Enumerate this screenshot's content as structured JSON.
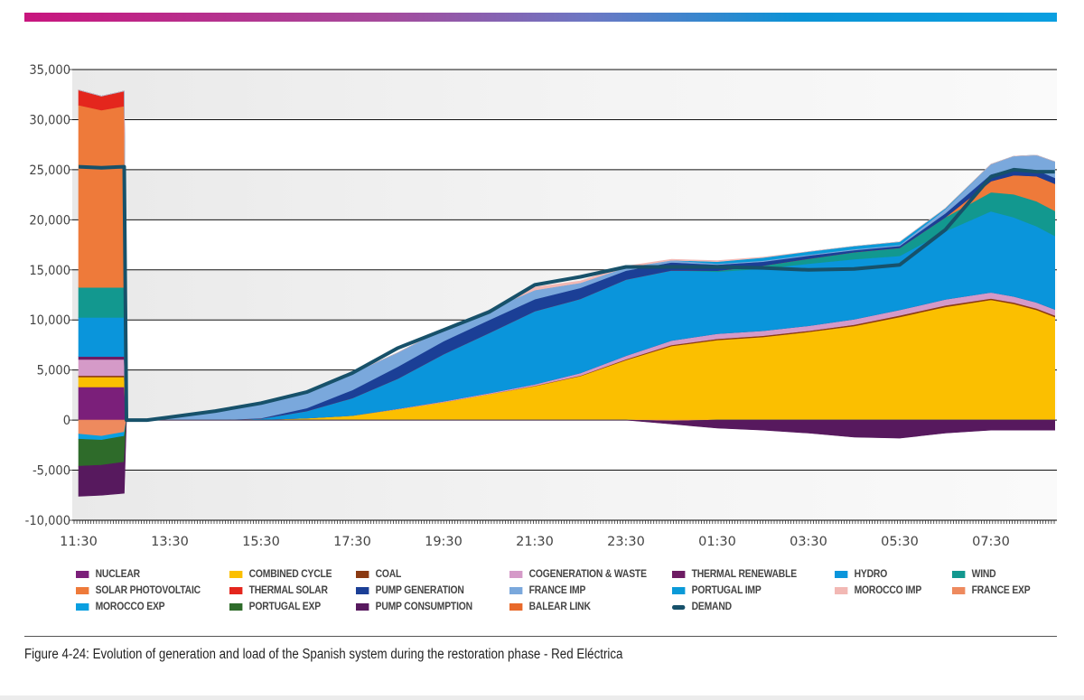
{
  "figure": {
    "caption": "Figure 4-24: Evolution of generation and load of the Spanish system during the restoration phase - Red Eléctrica"
  },
  "chart_data": {
    "type": "area",
    "stacked": true,
    "title": "",
    "xlabel": "",
    "ylabel": "",
    "ylim": [
      -10000,
      35000
    ],
    "yticks": [
      35000,
      30000,
      25000,
      20000,
      15000,
      10000,
      5000,
      0,
      -5000,
      -10000
    ],
    "ytick_labels": [
      "35,000",
      "30,000",
      "25,000",
      "20,000",
      "15,000",
      "10,000",
      "5,000",
      "0",
      "-5,000",
      "-10,000"
    ],
    "x_unit": "hours after 11:30",
    "xlim": [
      -0.15,
      21.42
    ],
    "xticks": [
      0,
      2,
      4,
      6,
      8,
      10,
      12,
      14,
      16,
      18,
      20
    ],
    "xtick_labels": [
      "11:30",
      "13:30",
      "15:30",
      "17:30",
      "19:30",
      "21:30",
      "23:30",
      "01:30",
      "03:30",
      "05:30",
      "07:30"
    ],
    "grid": "horizontal",
    "legend_position": "bottom",
    "x": [
      0,
      0.5,
      1.0,
      1.05,
      1.5,
      2,
      3,
      4,
      5,
      6,
      7,
      8,
      9,
      10,
      11,
      12,
      13,
      14,
      15,
      16,
      17,
      18,
      19,
      20,
      20.5,
      21,
      21.4
    ],
    "positive_series": [
      {
        "name": "NUCLEAR",
        "color": "#7b1f7a",
        "values": [
          3300,
          3300,
          3300,
          0,
          0,
          0,
          0,
          0,
          0,
          0,
          0,
          0,
          0,
          0,
          0,
          0,
          0,
          0,
          0,
          0,
          0,
          0,
          0,
          0,
          0,
          0,
          0
        ]
      },
      {
        "name": "COMBINED CYCLE",
        "color": "#fbbf00",
        "values": [
          1000,
          1000,
          1000,
          0,
          0,
          0,
          0,
          50,
          200,
          450,
          1100,
          1800,
          2600,
          3400,
          4400,
          6000,
          7400,
          8000,
          8300,
          8800,
          9400,
          10300,
          11300,
          12000,
          11600,
          11000,
          10300
        ]
      },
      {
        "name": "COAL",
        "color": "#8b3a12",
        "values": [
          150,
          150,
          150,
          0,
          0,
          0,
          0,
          0,
          0,
          0,
          0,
          0,
          0,
          30,
          50,
          80,
          100,
          120,
          120,
          120,
          120,
          150,
          150,
          150,
          150,
          150,
          150
        ]
      },
      {
        "name": "COGENERATION & WASTE",
        "color": "#d59ac8",
        "values": [
          1600,
          1600,
          1600,
          0,
          0,
          0,
          0,
          0,
          0,
          0,
          50,
          80,
          100,
          150,
          250,
          350,
          450,
          500,
          500,
          500,
          550,
          550,
          600,
          600,
          600,
          600,
          600
        ]
      },
      {
        "name": "THERMAL RENEWABLE",
        "color": "#6e1c63",
        "values": [
          300,
          300,
          300,
          0,
          0,
          0,
          0,
          0,
          0,
          0,
          0,
          0,
          0,
          0,
          0,
          0,
          0,
          0,
          0,
          0,
          0,
          0,
          0,
          0,
          0,
          0,
          0
        ]
      },
      {
        "name": "HYDRO",
        "color": "#0a95db",
        "values": [
          3900,
          3900,
          3900,
          0,
          0,
          0,
          0,
          100,
          700,
          1750,
          3000,
          4700,
          6000,
          7300,
          7400,
          7600,
          7000,
          6200,
          6200,
          6200,
          6000,
          5400,
          6800,
          8100,
          7900,
          7600,
          7350
        ]
      },
      {
        "name": "WIND",
        "color": "#12988f",
        "values": [
          3000,
          3000,
          3000,
          0,
          0,
          0,
          0,
          0,
          0,
          0,
          0,
          0,
          0,
          0,
          0,
          0,
          0,
          100,
          300,
          500,
          700,
          800,
          1400,
          1900,
          2300,
          2500,
          2500
        ]
      },
      {
        "name": "SOLAR PHOTOVOLTAIC",
        "color": "#ee7a3a",
        "values": [
          18200,
          17700,
          18100,
          0,
          0,
          0,
          0,
          0,
          0,
          0,
          0,
          0,
          0,
          0,
          0,
          0,
          0,
          0,
          0,
          0,
          0,
          0,
          0,
          1100,
          1900,
          2500,
          2700
        ]
      },
      {
        "name": "THERMAL SOLAR",
        "color": "#e4261d",
        "values": [
          1500,
          1400,
          1500,
          0,
          0,
          0,
          0,
          0,
          0,
          0,
          0,
          0,
          0,
          0,
          0,
          0,
          0,
          0,
          0,
          0,
          0,
          0,
          0,
          0,
          0,
          0,
          0
        ]
      },
      {
        "name": "PUMP GENERATION",
        "color": "#1b3f96",
        "values": [
          0,
          0,
          0,
          0,
          0,
          0,
          0,
          50,
          300,
          800,
          1200,
          1300,
          1300,
          1200,
          1100,
          900,
          800,
          600,
          400,
          300,
          200,
          200,
          400,
          700,
          700,
          600,
          600
        ]
      },
      {
        "name": "FRANCE IMP",
        "color": "#7aa8dc",
        "values": [
          0,
          0,
          0,
          0,
          0,
          300,
          900,
          1600,
          1600,
          1650,
          1400,
          1200,
          1000,
          900,
          500,
          300,
          200,
          100,
          100,
          100,
          100,
          100,
          400,
          1000,
          1200,
          1500,
          1600
        ]
      },
      {
        "name": "PORTUGAL IMP",
        "color": "#0a9ad8",
        "values": [
          0,
          0,
          0,
          0,
          0,
          0,
          0,
          0,
          0,
          0,
          0,
          0,
          0,
          0,
          0,
          0,
          0,
          200,
          300,
          300,
          300,
          300,
          100,
          0,
          0,
          0,
          0
        ]
      },
      {
        "name": "MOROCCO IMP",
        "color": "#f2b8b4",
        "values": [
          0,
          0,
          0,
          0,
          0,
          0,
          0,
          0,
          0,
          0,
          0,
          0,
          0,
          300,
          200,
          150,
          100,
          100,
          50,
          0,
          0,
          0,
          0,
          0,
          0,
          0,
          0
        ]
      },
      {
        "name": "BALEAR LINK",
        "color": "#e8692a",
        "values": [
          0,
          0,
          0,
          0,
          0,
          0,
          0,
          0,
          0,
          0,
          0,
          0,
          0,
          0,
          0,
          0,
          0,
          0,
          0,
          0,
          0,
          0,
          0,
          0,
          0,
          0,
          0
        ]
      }
    ],
    "negative_series": [
      {
        "name": "FRANCE EXP",
        "color": "#ee8a5e",
        "values": [
          -1400,
          -1600,
          -1200,
          0,
          0,
          0,
          0,
          0,
          0,
          0,
          0,
          0,
          0,
          0,
          0,
          0,
          -100,
          0,
          0,
          0,
          0,
          0,
          0,
          0,
          0,
          0,
          0
        ]
      },
      {
        "name": "MOROCCO EXP",
        "color": "#0a9fe0",
        "values": [
          -500,
          -400,
          -400,
          0,
          0,
          0,
          0,
          0,
          0,
          0,
          0,
          0,
          0,
          0,
          0,
          0,
          0,
          0,
          0,
          0,
          0,
          0,
          0,
          0,
          0,
          0,
          0
        ]
      },
      {
        "name": "PORTUGAL EXP",
        "color": "#2e6b2a",
        "values": [
          -2700,
          -2500,
          -2600,
          0,
          0,
          0,
          0,
          0,
          0,
          0,
          0,
          0,
          0,
          0,
          0,
          0,
          0,
          0,
          0,
          0,
          0,
          0,
          0,
          0,
          0,
          0,
          0
        ]
      },
      {
        "name": "PUMP CONSUMPTION",
        "color": "#57195e",
        "values": [
          -3000,
          -3000,
          -3100,
          0,
          0,
          0,
          0,
          0,
          0,
          0,
          0,
          0,
          0,
          0,
          0,
          0,
          -300,
          -800,
          -1000,
          -1300,
          -1700,
          -1800,
          -1300,
          -1000,
          -1000,
          -1000,
          -1000
        ]
      }
    ],
    "demand": {
      "name": "DEMAND",
      "color": "#17516a",
      "values": [
        25300,
        25200,
        25300,
        0,
        0,
        300,
        900,
        1700,
        2800,
        4700,
        7200,
        9000,
        10800,
        13500,
        14300,
        15300,
        15300,
        15300,
        15200,
        15000,
        15100,
        15500,
        19000,
        24300,
        25000,
        24800,
        24800
      ]
    }
  },
  "legend": {
    "items": [
      {
        "label": "NUCLEAR",
        "color": "#7b1f7a",
        "kind": "area"
      },
      {
        "label": "COMBINED CYCLE",
        "color": "#fbbf00",
        "kind": "area"
      },
      {
        "label": "COAL",
        "color": "#8b3a12",
        "kind": "area"
      },
      {
        "label": "COGENERATION & WASTE",
        "color": "#d59ac8",
        "kind": "area"
      },
      {
        "label": "THERMAL RENEWABLE",
        "color": "#6e1c63",
        "kind": "area"
      },
      {
        "label": "HYDRO",
        "color": "#0a95db",
        "kind": "area"
      },
      {
        "label": "WIND",
        "color": "#12988f",
        "kind": "area"
      },
      {
        "label": "SOLAR PHOTOVOLTAIC",
        "color": "#ee7a3a",
        "kind": "area"
      },
      {
        "label": "THERMAL SOLAR",
        "color": "#e4261d",
        "kind": "area"
      },
      {
        "label": "PUMP GENERATION",
        "color": "#1b3f96",
        "kind": "area"
      },
      {
        "label": "FRANCE IMP",
        "color": "#7aa8dc",
        "kind": "area"
      },
      {
        "label": "PORTUGAL IMP",
        "color": "#0a9ad8",
        "kind": "area"
      },
      {
        "label": "MOROCCO IMP",
        "color": "#f2b8b4",
        "kind": "area"
      },
      {
        "label": "FRANCE EXP",
        "color": "#ee8a5e",
        "kind": "area"
      },
      {
        "label": "MOROCCO EXP",
        "color": "#0a9fe0",
        "kind": "area"
      },
      {
        "label": "PORTUGAL EXP",
        "color": "#2e6b2a",
        "kind": "area"
      },
      {
        "label": "PUMP CONSUMPTION",
        "color": "#57195e",
        "kind": "area"
      },
      {
        "label": "BALEAR LINK",
        "color": "#e8692a",
        "kind": "area"
      },
      {
        "label": "DEMAND",
        "color": "#17516a",
        "kind": "line"
      }
    ]
  }
}
